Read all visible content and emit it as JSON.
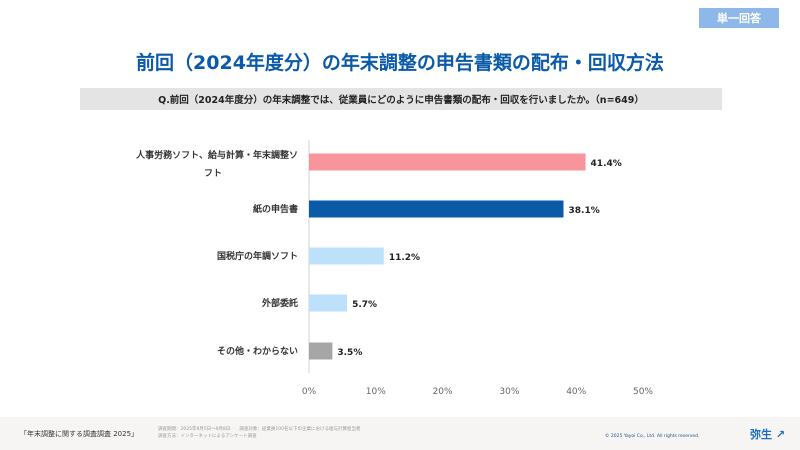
{
  "badge": "単一回答",
  "title": "前回（2024年度分）の年末調整の申告書類の配布・回収方法",
  "question": "Q.前回（2024年度分）の年末調整では、従業員にどのように申告書類の配布・回収を行いましたか。（n=649）",
  "chart_data": {
    "type": "bar",
    "orientation": "horizontal",
    "categories": [
      [
        "人事労務ソフト、給与計算・年末調整ソ",
        "フト"
      ],
      [
        "紙の申告書"
      ],
      [
        "国税庁の年調ソフト"
      ],
      [
        "外部委託"
      ],
      [
        "その他・わからない"
      ]
    ],
    "values": [
      41.4,
      38.1,
      11.2,
      5.7,
      3.5
    ],
    "value_labels": [
      "41.4%",
      "38.1%",
      "11.2%",
      "5.7%",
      "3.5%"
    ],
    "colors": [
      "#f8949b",
      "#0b5aa8",
      "#bde0fb",
      "#bde0fb",
      "#a6a6a6"
    ],
    "xlim": [
      0,
      50
    ],
    "ticks": [
      "0%",
      "10%",
      "20%",
      "30%",
      "40%",
      "50%"
    ]
  },
  "footer": {
    "survey_name": "「年末調整に関する調査調査 2025」",
    "survey_period": "調査期間：2025年9月5日〜9月8日　　調査対象：従業員100名以下の企業における給与計算担当者",
    "survey_method": "調査方法：インターネットによるアンケート調査",
    "copyright": "© 2025 Yayoi Co., Ltd. All rights reserved.",
    "logo": "弥生"
  }
}
